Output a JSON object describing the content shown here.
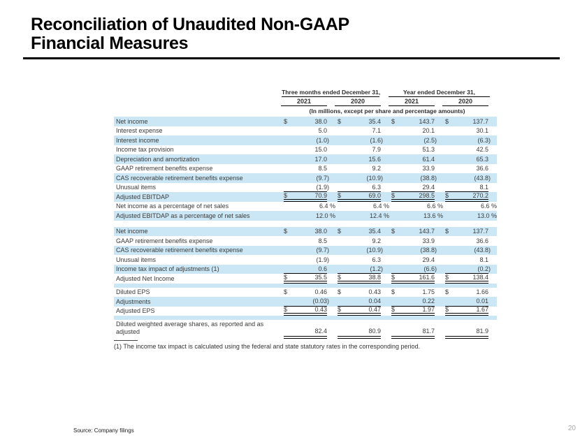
{
  "page": {
    "title_line1": "Reconciliation of Unaudited Non-GAAP",
    "title_line2": "Financial Measures",
    "source": "Source: Company filings",
    "page_number": "20"
  },
  "footnote": "(1)  The income tax impact is calculated using the federal and state statutory rates in the corresponding period.",
  "table": {
    "col_groups": [
      "Three months ended December 31,",
      "Year ended December 31,"
    ],
    "years": [
      "2021",
      "2020",
      "2021",
      "2020"
    ],
    "units_note": "(In millions, except per share and percentage amounts)",
    "stripe_color": "#cbe7f5",
    "rows": [
      {
        "label": "Net income",
        "bg": "blue",
        "cells": [
          [
            "$",
            "38.0"
          ],
          [
            "$",
            "35.4"
          ],
          [
            "$",
            "143.7"
          ],
          [
            "$",
            "137.7"
          ]
        ]
      },
      {
        "label": "Interest expense",
        "bg": "white",
        "cells": [
          [
            "",
            "5.0"
          ],
          [
            "",
            "7.1"
          ],
          [
            "",
            "20.1"
          ],
          [
            "",
            "30.1"
          ]
        ]
      },
      {
        "label": "Interest income",
        "bg": "blue",
        "cells": [
          [
            "",
            "(1.0)"
          ],
          [
            "",
            "(1.6)"
          ],
          [
            "",
            "(2.5)"
          ],
          [
            "",
            "(6.3)"
          ]
        ]
      },
      {
        "label": "Income tax provision",
        "bg": "white",
        "cells": [
          [
            "",
            "15.0"
          ],
          [
            "",
            "7.9"
          ],
          [
            "",
            "51.3"
          ],
          [
            "",
            "42.5"
          ]
        ]
      },
      {
        "label": "Depreciation and amortization",
        "bg": "blue",
        "cells": [
          [
            "",
            "17.0"
          ],
          [
            "",
            "15.6"
          ],
          [
            "",
            "61.4"
          ],
          [
            "",
            "65.3"
          ]
        ]
      },
      {
        "label": "GAAP retirement benefits expense",
        "bg": "white",
        "cells": [
          [
            "",
            "8.5"
          ],
          [
            "",
            "9.2"
          ],
          [
            "",
            "33.9"
          ],
          [
            "",
            "36.6"
          ]
        ]
      },
      {
        "label": "CAS recoverable retirement benefits expense",
        "bg": "blue",
        "cells": [
          [
            "",
            "(9.7)"
          ],
          [
            "",
            "(10.9)"
          ],
          [
            "",
            "(38.8)"
          ],
          [
            "",
            "(43.8)"
          ]
        ]
      },
      {
        "label": "Unusual items",
        "bg": "white",
        "border": "single",
        "cells": [
          [
            "",
            "(1.9)"
          ],
          [
            "",
            "6.3"
          ],
          [
            "",
            "29.4"
          ],
          [
            "",
            "8.1"
          ]
        ]
      },
      {
        "label": "Adjusted EBITDAP",
        "bg": "blue",
        "border": "double",
        "cells": [
          [
            "$",
            "70.9"
          ],
          [
            "$",
            "69.0"
          ],
          [
            "$",
            "298.5"
          ],
          [
            "$",
            "270.2"
          ]
        ]
      },
      {
        "label": "Net income as a percentage of net sales",
        "bg": "white",
        "pct": true,
        "cells": [
          [
            "",
            "6.4 %"
          ],
          [
            "",
            "6.4 %"
          ],
          [
            "",
            "6.6 %"
          ],
          [
            "",
            "6.6 %"
          ]
        ]
      },
      {
        "label": "Adjusted EBITDAP as a percentage of net sales",
        "bg": "blue",
        "pct": true,
        "cells": [
          [
            "",
            "12.0 %"
          ],
          [
            "",
            "12.4 %"
          ],
          [
            "",
            "13.6 %"
          ],
          [
            "",
            "13.0 %"
          ]
        ]
      },
      {
        "type": "gap",
        "bg": "white",
        "h": 9
      },
      {
        "label": "Net income",
        "bg": "blue",
        "cells": [
          [
            "$",
            "38.0"
          ],
          [
            "$",
            "35.4"
          ],
          [
            "$",
            "143.7"
          ],
          [
            "$",
            "137.7"
          ]
        ]
      },
      {
        "label": "GAAP retirement benefits expense",
        "bg": "white",
        "cells": [
          [
            "",
            "8.5"
          ],
          [
            "",
            "9.2"
          ],
          [
            "",
            "33.9"
          ],
          [
            "",
            "36.6"
          ]
        ]
      },
      {
        "label": "CAS recoverable retirement benefits expense",
        "bg": "blue",
        "cells": [
          [
            "",
            "(9.7)"
          ],
          [
            "",
            "(10.9)"
          ],
          [
            "",
            "(38.8)"
          ],
          [
            "",
            "(43.8)"
          ]
        ]
      },
      {
        "label": "Unusual items",
        "bg": "white",
        "cells": [
          [
            "",
            "(1.9)"
          ],
          [
            "",
            "6.3"
          ],
          [
            "",
            "29.4"
          ],
          [
            "",
            "8.1"
          ]
        ]
      },
      {
        "label": "Income tax impact of adjustments (1)",
        "bg": "blue",
        "border": "single",
        "cells": [
          [
            "",
            "0.6"
          ],
          [
            "",
            "(1.2)"
          ],
          [
            "",
            "(6.6)"
          ],
          [
            "",
            "(0.2)"
          ]
        ]
      },
      {
        "label": "Adjusted Net Income",
        "bg": "white",
        "border": "double",
        "cells": [
          [
            "$",
            "35.5"
          ],
          [
            "$",
            "38.8"
          ],
          [
            "$",
            "161.6"
          ],
          [
            "$",
            "138.4"
          ]
        ]
      },
      {
        "type": "gap",
        "bg": "blue",
        "h": 6
      },
      {
        "label": "Diluted EPS",
        "bg": "white",
        "cells": [
          [
            "$",
            "0.46"
          ],
          [
            "$",
            "0.43"
          ],
          [
            "$",
            "1.75"
          ],
          [
            "$",
            "1.66"
          ]
        ]
      },
      {
        "label": "Adjustments",
        "bg": "blue",
        "border": "single",
        "cells": [
          [
            "",
            "(0.03)"
          ],
          [
            "",
            "0.04"
          ],
          [
            "",
            "0.22"
          ],
          [
            "",
            "0.01"
          ]
        ]
      },
      {
        "label": "Adjusted EPS",
        "bg": "white",
        "border": "double",
        "cells": [
          [
            "$",
            "0.43"
          ],
          [
            "$",
            "0.47"
          ],
          [
            "$",
            "1.97"
          ],
          [
            "$",
            "1.67"
          ]
        ]
      },
      {
        "type": "gap",
        "bg": "blue",
        "h": 6
      },
      {
        "label": "Diluted weighted average shares, as reported and as adjusted",
        "bg": "white",
        "tall": true,
        "border": "double",
        "cells": [
          [
            "",
            "82.4"
          ],
          [
            "",
            "80.9"
          ],
          [
            "",
            "81.7"
          ],
          [
            "",
            "81.9"
          ]
        ]
      }
    ]
  }
}
